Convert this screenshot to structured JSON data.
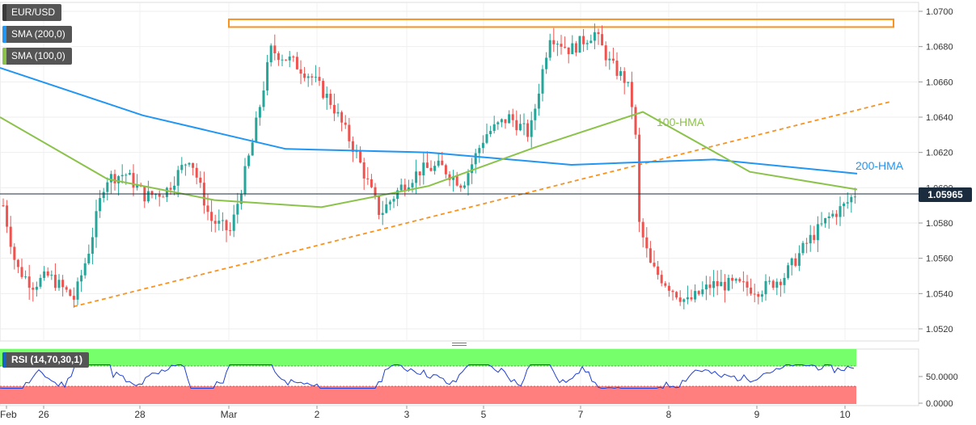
{
  "legend": {
    "symbol": "EUR/USD",
    "sma200": "SMA (200,0)",
    "sma100": "SMA (100,0)",
    "sma200_color": "#2196f3",
    "sma100_color": "#8bc34a"
  },
  "last_price_label": "1.05965",
  "annotations": {
    "hma100": "100-HMA",
    "hma200": "200-HMA"
  },
  "rsi": {
    "label": "RSI (14,70,30,1)",
    "ticks": [
      "50.0000",
      "0.0000"
    ]
  },
  "colors": {
    "up": "#26a69a",
    "down": "#ef5350",
    "hma200": "#2196f3",
    "hma100": "#8bc34a",
    "support_resistance": "#f7931e",
    "rsi_line": "#1e3fd1",
    "rsi_overbought": "#76ff6a",
    "rsi_oversold": "#ff7f7f",
    "last_price_bg": "#1b2c3f"
  },
  "chart_data": {
    "type": "candlestick",
    "title": "EUR/USD",
    "y_range": [
      1.0515,
      1.0705
    ],
    "y_ticks": [
      "1.0700",
      "1.0680",
      "1.0660",
      "1.0640",
      "1.0620",
      "1.0600",
      "1.0580",
      "1.0560",
      "1.0540",
      "1.0520"
    ],
    "x_labels": [
      "Feb",
      "26",
      "28",
      "Mar",
      "2",
      "3",
      "5",
      "7",
      "8",
      "9",
      "10"
    ],
    "last_price": 1.05965,
    "resistance_zone": [
      1.0692,
      1.0695
    ],
    "rising_trendline": {
      "from": 1.0534,
      "to": 1.065
    },
    "hma200_key_points": [
      1.0668,
      1.0641,
      1.0622,
      1.062,
      1.0613,
      1.0616,
      1.0608
    ],
    "hma100_key_points": [
      1.064,
      1.0605,
      1.0593,
      1.0589,
      1.0601,
      1.0623,
      1.0643,
      1.0609,
      1.0599
    ],
    "grid": true
  }
}
